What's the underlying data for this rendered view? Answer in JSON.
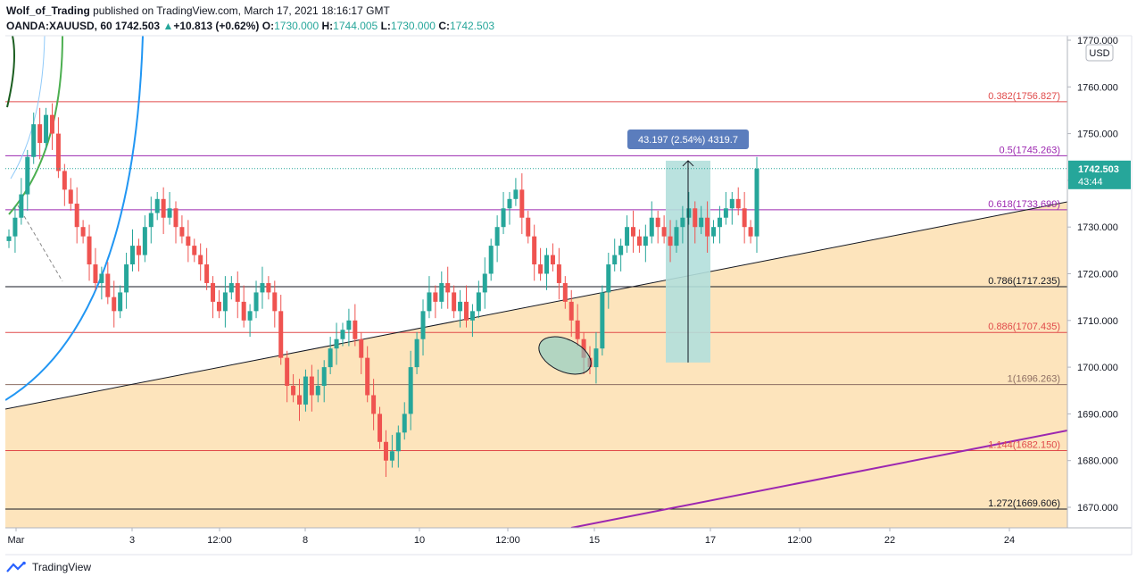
{
  "header": {
    "author": "Wolf_of_Trading",
    "published": "published on TradingView.com, March 17, 2021 18:16:17 GMT",
    "symbol": "OANDA:XAUUSD, 60",
    "last": "1742.503",
    "change": "+10.813 (+0.62%)",
    "o_label": "O:",
    "o": "1730.000",
    "h_label": "H:",
    "h": "1744.005",
    "l_label": "L:",
    "l": "1730.000",
    "c_label": "C:",
    "c": "1742.503"
  },
  "currency": "USD",
  "price_label": {
    "price": "1742.503",
    "countdown": "43:44"
  },
  "measure_label": "43.197 (2.54%) 4319.7",
  "footer": {
    "brand": "TradingView"
  },
  "colors": {
    "up": "#26a69a",
    "down": "#ef5350",
    "fib_red": "#e04a4a",
    "fib_purple": "#9c27b0",
    "fill": "#fddfb0",
    "measure": "#5b9bd5",
    "measure_fill": "#b2dfdb"
  },
  "chart_data": {
    "type": "candlestick",
    "y_axis": {
      "ticks": [
        "1670.000",
        "1680.000",
        "1690.000",
        "1700.000",
        "1710.000",
        "1720.000",
        "1730.000",
        "1740.000",
        "1750.000",
        "1760.000",
        "1770.000"
      ],
      "tick_values": [
        1670,
        1680,
        1690,
        1700,
        1710,
        1720,
        1730,
        1740,
        1750,
        1760,
        1770
      ],
      "range": [
        1665,
        1775
      ]
    },
    "x_axis": {
      "ticks": [
        "Mar",
        "3",
        "12:00",
        "8",
        "10",
        "12:00",
        "15",
        "17",
        "12:00",
        "22",
        "24"
      ]
    },
    "fib_levels": [
      {
        "label": "0.382(1756.827)",
        "value": 1756.827,
        "color": "#e04a4a"
      },
      {
        "label": "0.5(1745.263)",
        "value": 1745.263,
        "color": "#9c27b0"
      },
      {
        "label": "0.618(1733.699)",
        "value": 1733.699,
        "color": "#9c27b0"
      },
      {
        "label": "0.786(1717.235)",
        "value": 1717.235,
        "color": "#131722"
      },
      {
        "label": "0.886(1707.435)",
        "value": 1707.435,
        "color": "#e04a4a"
      },
      {
        "label": "1(1696.263)",
        "value": 1696.263,
        "color": "#8d6e63"
      },
      {
        "label": "1.144(1682.150)",
        "value": 1682.15,
        "color": "#e04a4a"
      },
      {
        "label": "1.272(1669.606)",
        "value": 1669.606,
        "color": "#131722"
      }
    ],
    "current_price": 1742.503,
    "measure": {
      "from": 1701.0,
      "to": 1744.2
    },
    "series_close": [
      1728,
      1732,
      1737,
      1745,
      1752,
      1748,
      1754,
      1750,
      1742,
      1738,
      1735,
      1730,
      1728,
      1722,
      1718,
      1720,
      1715,
      1712,
      1716,
      1722,
      1726,
      1724,
      1730,
      1733,
      1736,
      1732,
      1734,
      1730,
      1728,
      1726,
      1724,
      1722,
      1718,
      1714,
      1712,
      1716,
      1718,
      1714,
      1710,
      1712,
      1716,
      1718,
      1716,
      1712,
      1702,
      1696,
      1694,
      1692,
      1698,
      1694,
      1696,
      1700,
      1704,
      1706,
      1708,
      1710,
      1706,
      1702,
      1694,
      1690,
      1684,
      1680,
      1682,
      1686,
      1690,
      1700,
      1706,
      1712,
      1716,
      1714,
      1718,
      1716,
      1712,
      1714,
      1710,
      1712,
      1716,
      1720,
      1726,
      1730,
      1734,
      1736,
      1738,
      1732,
      1728,
      1722,
      1720,
      1724,
      1722,
      1718,
      1714,
      1710,
      1706,
      1702,
      1700,
      1704,
      1716,
      1722,
      1724,
      1726,
      1730,
      1728,
      1726,
      1728,
      1732,
      1730,
      1728,
      1726,
      1730,
      1732,
      1734,
      1730,
      1732,
      1728,
      1730,
      1732,
      1734,
      1736,
      1734,
      1730,
      1728,
      1742.503
    ]
  }
}
